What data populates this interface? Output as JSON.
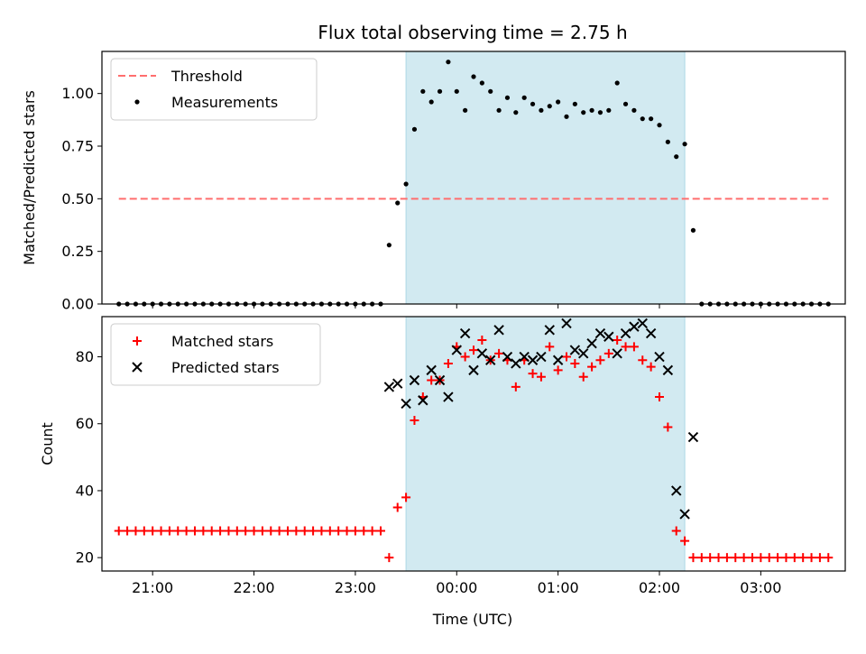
{
  "chart_data": {
    "title": "Flux total observing time = 2.75 h",
    "xlabel": "Time (UTC)",
    "x_ticks": [
      "21:00",
      "22:00",
      "23:00",
      "00:00",
      "01:00",
      "02:00",
      "03:00"
    ],
    "xlim": [
      "20:30",
      "03:50"
    ],
    "highlight_span": {
      "start": "23:30",
      "end": "02:15",
      "color": "#add8e6"
    },
    "panels": [
      {
        "type": "scatter",
        "ylabel": "Matched/Predicted stars",
        "ylim": [
          0,
          1.2
        ],
        "y_ticks": [
          "0.00",
          "0.25",
          "0.50",
          "0.75",
          "1.00"
        ],
        "legend_position": "upper-left",
        "threshold": {
          "name": "Threshold",
          "value": 0.5,
          "x_start": "20:40",
          "x_end": "03:40",
          "color": "#ff6e6e"
        },
        "series": [
          {
            "name": "Measurements",
            "marker": "dot",
            "color": "#000000",
            "points": [
              [
                "20:40",
                0
              ],
              [
                "20:45",
                0
              ],
              [
                "20:50",
                0
              ],
              [
                "20:55",
                0
              ],
              [
                "21:00",
                0
              ],
              [
                "21:05",
                0
              ],
              [
                "21:10",
                0
              ],
              [
                "21:15",
                0
              ],
              [
                "21:20",
                0
              ],
              [
                "21:25",
                0
              ],
              [
                "21:30",
                0
              ],
              [
                "21:35",
                0
              ],
              [
                "21:40",
                0
              ],
              [
                "21:45",
                0
              ],
              [
                "21:50",
                0
              ],
              [
                "21:55",
                0
              ],
              [
                "22:00",
                0
              ],
              [
                "22:05",
                0
              ],
              [
                "22:10",
                0
              ],
              [
                "22:15",
                0
              ],
              [
                "22:20",
                0
              ],
              [
                "22:25",
                0
              ],
              [
                "22:30",
                0
              ],
              [
                "22:35",
                0
              ],
              [
                "22:40",
                0
              ],
              [
                "22:45",
                0
              ],
              [
                "22:50",
                0
              ],
              [
                "22:55",
                0
              ],
              [
                "23:00",
                0
              ],
              [
                "23:05",
                0
              ],
              [
                "23:10",
                0
              ],
              [
                "23:15",
                0
              ],
              [
                "23:20",
                0.28
              ],
              [
                "23:25",
                0.48
              ],
              [
                "23:30",
                0.57
              ],
              [
                "23:35",
                0.83
              ],
              [
                "23:40",
                1.01
              ],
              [
                "23:45",
                0.96
              ],
              [
                "23:50",
                1.01
              ],
              [
                "23:55",
                1.15
              ],
              [
                "00:00",
                1.01
              ],
              [
                "00:05",
                0.92
              ],
              [
                "00:10",
                1.08
              ],
              [
                "00:15",
                1.05
              ],
              [
                "00:20",
                1.01
              ],
              [
                "00:25",
                0.92
              ],
              [
                "00:30",
                0.98
              ],
              [
                "00:35",
                0.91
              ],
              [
                "00:40",
                0.98
              ],
              [
                "00:45",
                0.95
              ],
              [
                "00:50",
                0.92
              ],
              [
                "00:55",
                0.94
              ],
              [
                "01:00",
                0.96
              ],
              [
                "01:05",
                0.89
              ],
              [
                "01:10",
                0.95
              ],
              [
                "01:15",
                0.91
              ],
              [
                "01:20",
                0.92
              ],
              [
                "01:25",
                0.91
              ],
              [
                "01:30",
                0.92
              ],
              [
                "01:35",
                1.05
              ],
              [
                "01:40",
                0.95
              ],
              [
                "01:45",
                0.92
              ],
              [
                "01:50",
                0.88
              ],
              [
                "01:55",
                0.88
              ],
              [
                "02:00",
                0.85
              ],
              [
                "02:05",
                0.77
              ],
              [
                "02:10",
                0.7
              ],
              [
                "02:15",
                0.76
              ],
              [
                "02:20",
                0.35
              ],
              [
                "02:25",
                0
              ],
              [
                "02:30",
                0
              ],
              [
                "02:35",
                0
              ],
              [
                "02:40",
                0
              ],
              [
                "02:45",
                0
              ],
              [
                "02:50",
                0
              ],
              [
                "02:55",
                0
              ],
              [
                "03:00",
                0
              ],
              [
                "03:05",
                0
              ],
              [
                "03:10",
                0
              ],
              [
                "03:15",
                0
              ],
              [
                "03:20",
                0
              ],
              [
                "03:25",
                0
              ],
              [
                "03:30",
                0
              ],
              [
                "03:35",
                0
              ],
              [
                "03:40",
                0
              ]
            ]
          }
        ]
      },
      {
        "type": "scatter",
        "ylabel": "Count",
        "ylim": [
          16,
          92
        ],
        "y_ticks": [
          "20",
          "40",
          "60",
          "80"
        ],
        "legend_position": "upper-left",
        "series": [
          {
            "name": "Matched stars",
            "marker": "plus",
            "color": "#ff0000",
            "points": [
              [
                "20:40",
                28
              ],
              [
                "20:45",
                28
              ],
              [
                "20:50",
                28
              ],
              [
                "20:55",
                28
              ],
              [
                "21:00",
                28
              ],
              [
                "21:05",
                28
              ],
              [
                "21:10",
                28
              ],
              [
                "21:15",
                28
              ],
              [
                "21:20",
                28
              ],
              [
                "21:25",
                28
              ],
              [
                "21:30",
                28
              ],
              [
                "21:35",
                28
              ],
              [
                "21:40",
                28
              ],
              [
                "21:45",
                28
              ],
              [
                "21:50",
                28
              ],
              [
                "21:55",
                28
              ],
              [
                "22:00",
                28
              ],
              [
                "22:05",
                28
              ],
              [
                "22:10",
                28
              ],
              [
                "22:15",
                28
              ],
              [
                "22:20",
                28
              ],
              [
                "22:25",
                28
              ],
              [
                "22:30",
                28
              ],
              [
                "22:35",
                28
              ],
              [
                "22:40",
                28
              ],
              [
                "22:45",
                28
              ],
              [
                "22:50",
                28
              ],
              [
                "22:55",
                28
              ],
              [
                "23:00",
                28
              ],
              [
                "23:05",
                28
              ],
              [
                "23:10",
                28
              ],
              [
                "23:15",
                28
              ],
              [
                "23:20",
                20
              ],
              [
                "23:25",
                35
              ],
              [
                "23:30",
                38
              ],
              [
                "23:35",
                61
              ],
              [
                "23:40",
                68
              ],
              [
                "23:45",
                73
              ],
              [
                "23:50",
                73
              ],
              [
                "23:55",
                78
              ],
              [
                "00:00",
                83
              ],
              [
                "00:05",
                80
              ],
              [
                "00:10",
                82
              ],
              [
                "00:15",
                85
              ],
              [
                "00:20",
                79
              ],
              [
                "00:25",
                81
              ],
              [
                "00:30",
                79
              ],
              [
                "00:35",
                71
              ],
              [
                "00:40",
                79
              ],
              [
                "00:45",
                75
              ],
              [
                "00:50",
                74
              ],
              [
                "00:55",
                83
              ],
              [
                "01:00",
                76
              ],
              [
                "01:05",
                80
              ],
              [
                "01:10",
                78
              ],
              [
                "01:15",
                74
              ],
              [
                "01:20",
                77
              ],
              [
                "01:25",
                79
              ],
              [
                "01:30",
                81
              ],
              [
                "01:35",
                85
              ],
              [
                "01:40",
                83
              ],
              [
                "01:45",
                83
              ],
              [
                "01:50",
                79
              ],
              [
                "01:55",
                77
              ],
              [
                "02:00",
                68
              ],
              [
                "02:05",
                59
              ],
              [
                "02:10",
                28
              ],
              [
                "02:15",
                25
              ],
              [
                "02:20",
                20
              ],
              [
                "02:25",
                20
              ],
              [
                "02:30",
                20
              ],
              [
                "02:35",
                20
              ],
              [
                "02:40",
                20
              ],
              [
                "02:45",
                20
              ],
              [
                "02:50",
                20
              ],
              [
                "02:55",
                20
              ],
              [
                "03:00",
                20
              ],
              [
                "03:05",
                20
              ],
              [
                "03:10",
                20
              ],
              [
                "03:15",
                20
              ],
              [
                "03:20",
                20
              ],
              [
                "03:25",
                20
              ],
              [
                "03:30",
                20
              ],
              [
                "03:35",
                20
              ],
              [
                "03:40",
                20
              ]
            ]
          },
          {
            "name": "Predicted stars",
            "marker": "cross",
            "color": "#000000",
            "points": [
              [
                "23:20",
                71
              ],
              [
                "23:25",
                72
              ],
              [
                "23:30",
                66
              ],
              [
                "23:35",
                73
              ],
              [
                "23:40",
                67
              ],
              [
                "23:45",
                76
              ],
              [
                "23:50",
                73
              ],
              [
                "23:55",
                68
              ],
              [
                "00:00",
                82
              ],
              [
                "00:05",
                87
              ],
              [
                "00:10",
                76
              ],
              [
                "00:15",
                81
              ],
              [
                "00:20",
                79
              ],
              [
                "00:25",
                88
              ],
              [
                "00:30",
                80
              ],
              [
                "00:35",
                78
              ],
              [
                "00:40",
                80
              ],
              [
                "00:45",
                79
              ],
              [
                "00:50",
                80
              ],
              [
                "00:55",
                88
              ],
              [
                "01:00",
                79
              ],
              [
                "01:05",
                90
              ],
              [
                "01:10",
                82
              ],
              [
                "01:15",
                81
              ],
              [
                "01:20",
                84
              ],
              [
                "01:25",
                87
              ],
              [
                "01:30",
                86
              ],
              [
                "01:35",
                81
              ],
              [
                "01:40",
                87
              ],
              [
                "01:45",
                89
              ],
              [
                "01:50",
                90
              ],
              [
                "01:55",
                87
              ],
              [
                "02:00",
                80
              ],
              [
                "02:05",
                76
              ],
              [
                "02:10",
                40
              ],
              [
                "02:15",
                33
              ],
              [
                "02:20",
                56
              ]
            ]
          }
        ]
      }
    ]
  }
}
